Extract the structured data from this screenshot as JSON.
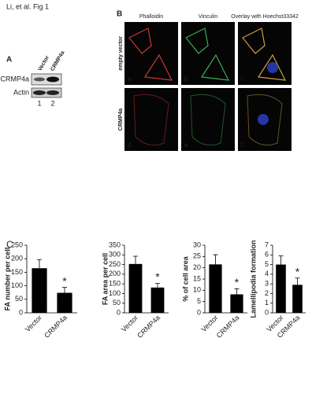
{
  "header": {
    "title": "Li, et al. Fig 1"
  },
  "panel_a": {
    "label": "A",
    "lanes": [
      "Vector",
      "CRMP4a"
    ],
    "bands": [
      "CRMP4a",
      "Actin"
    ],
    "lane_numbers": [
      "1",
      "2"
    ]
  },
  "panel_b": {
    "label": "B",
    "columns": [
      "Phalloidin",
      "Vinculin",
      "Overlay with Hoechst33342"
    ],
    "column_colors": [
      "#d03030",
      "#2e9e3e",
      "#3a6fd0"
    ],
    "rows": [
      "empty vector",
      "CRMP4a"
    ],
    "panels": [
      "a",
      "b",
      "c",
      "d",
      "e",
      "f"
    ]
  },
  "panel_c": {
    "label": "C"
  },
  "chart_data": [
    {
      "type": "bar",
      "ylabel": "FA number per cell",
      "categories": [
        "Vector",
        "CRMP4a"
      ],
      "values": [
        165,
        74
      ],
      "errors": [
        32,
        20
      ],
      "significance": [
        null,
        "*"
      ],
      "color": "#000000",
      "ylim": [
        0,
        250
      ],
      "yticks": [
        0,
        50,
        100,
        150,
        200,
        250
      ]
    },
    {
      "type": "bar",
      "ylabel": "FA area per cell",
      "categories": [
        "Vector",
        "CRMP4a"
      ],
      "values": [
        253,
        131
      ],
      "errors": [
        40,
        22
      ],
      "significance": [
        null,
        "*"
      ],
      "color": "#000000",
      "ylim": [
        0,
        350
      ],
      "yticks": [
        0,
        50,
        100,
        150,
        200,
        250,
        300,
        350
      ]
    },
    {
      "type": "bar",
      "ylabel": "% of cell area",
      "categories": [
        "Vector",
        "CRMP4a"
      ],
      "values": [
        21.5,
        8.2
      ],
      "errors": [
        4.3,
        2.5
      ],
      "significance": [
        null,
        "*"
      ],
      "color": "#000000",
      "ylim": [
        0,
        30
      ],
      "yticks": [
        0,
        5,
        10,
        15,
        20,
        25,
        30
      ]
    },
    {
      "type": "bar",
      "ylabel": "Lamellipodia formation",
      "categories": [
        "Vector",
        "CRMP4a"
      ],
      "values": [
        5,
        2.9
      ],
      "errors": [
        0.9,
        0.7
      ],
      "significance": [
        null,
        "*"
      ],
      "color": "#000000",
      "ylim": [
        0,
        7
      ],
      "yticks": [
        0,
        1,
        2,
        3,
        4,
        5,
        6,
        7
      ]
    }
  ]
}
